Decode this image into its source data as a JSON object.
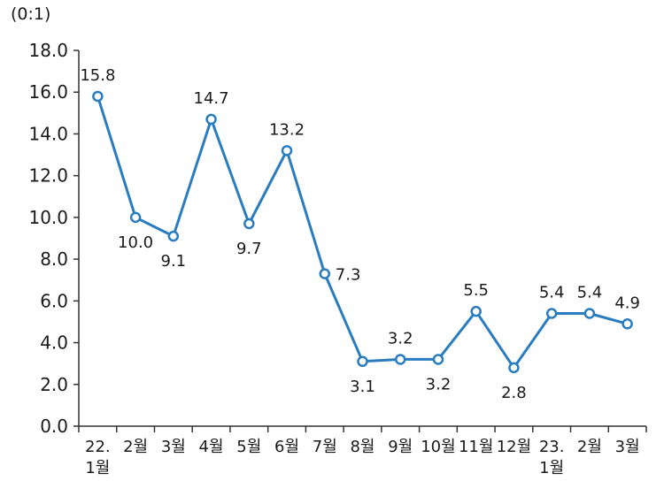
{
  "chart_data": {
    "type": "line",
    "unit_label": "(0:1)",
    "ylim": [
      0,
      18
    ],
    "y_ticks": [
      "0.0",
      "2.0",
      "4.0",
      "6.0",
      "8.0",
      "10.0",
      "12.0",
      "14.0",
      "16.0",
      "18.0"
    ],
    "categories": [
      [
        "22.",
        "1월"
      ],
      [
        "2월"
      ],
      [
        "3월"
      ],
      [
        "4월"
      ],
      [
        "5월"
      ],
      [
        "6월"
      ],
      [
        "7월"
      ],
      [
        "8월"
      ],
      [
        "9월"
      ],
      [
        "10월"
      ],
      [
        "11월"
      ],
      [
        "12월"
      ],
      [
        "23.",
        "1월"
      ],
      [
        "2월"
      ],
      [
        "3월"
      ]
    ],
    "series": [
      {
        "values": [
          15.8,
          10.0,
          9.1,
          14.7,
          9.7,
          13.2,
          7.3,
          3.1,
          3.2,
          3.2,
          5.5,
          2.8,
          5.4,
          5.4,
          4.9
        ],
        "labels": [
          "15.8",
          "10.0",
          "9.1",
          "14.7",
          "9.7",
          "13.2",
          "7.3",
          "3.1",
          "3.2",
          "3.2",
          "5.5",
          "2.8",
          "5.4",
          "5.4",
          "4.9"
        ],
        "color": "#2a7cc1"
      }
    ],
    "grid": false,
    "legend": "none"
  }
}
